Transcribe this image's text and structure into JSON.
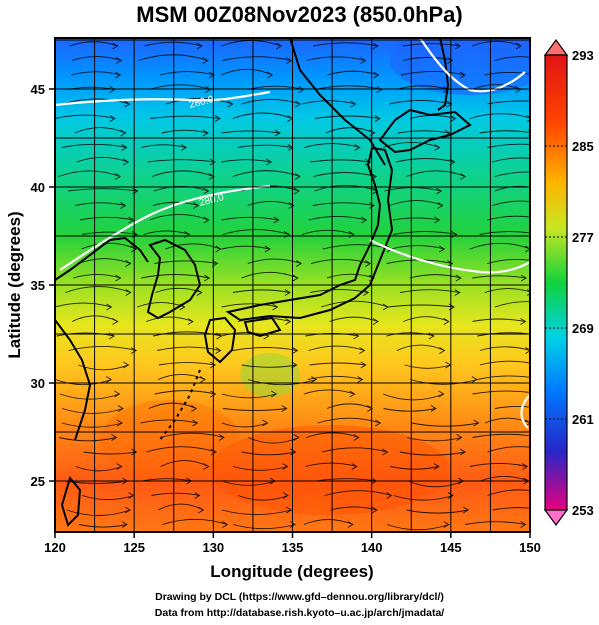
{
  "title": "MSM 00Z08Nov2023 (850.0hPa)",
  "xaxis": {
    "title": "Longitude (degrees)",
    "range": [
      120,
      150
    ],
    "ticks": [
      "120",
      "125",
      "130",
      "135",
      "140",
      "145",
      "150"
    ]
  },
  "yaxis": {
    "title": "Latitude  (degrees)",
    "range": [
      22.4,
      47.6
    ],
    "ticks": [
      "25",
      "30",
      "35",
      "40",
      "45"
    ]
  },
  "colorbar": {
    "range": [
      253,
      293
    ],
    "labels": [
      "293",
      "285",
      "277",
      "269",
      "261",
      "253"
    ],
    "colors": [
      "#e7007e",
      "#2727c8",
      "#0078ff",
      "#00d2e6",
      "#12d23c",
      "#c8e623",
      "#ffb400",
      "#ff4500",
      "#e11414"
    ]
  },
  "contour_labels": [
    "280.0",
    "280.0"
  ],
  "footer": {
    "line1": "Drawing by DCL (https://www.gfd–dennou.org/library/dcl/)",
    "line2": "Data from http://database.rish.kyoto–u.ac.jp/arch/jmadata/"
  }
}
